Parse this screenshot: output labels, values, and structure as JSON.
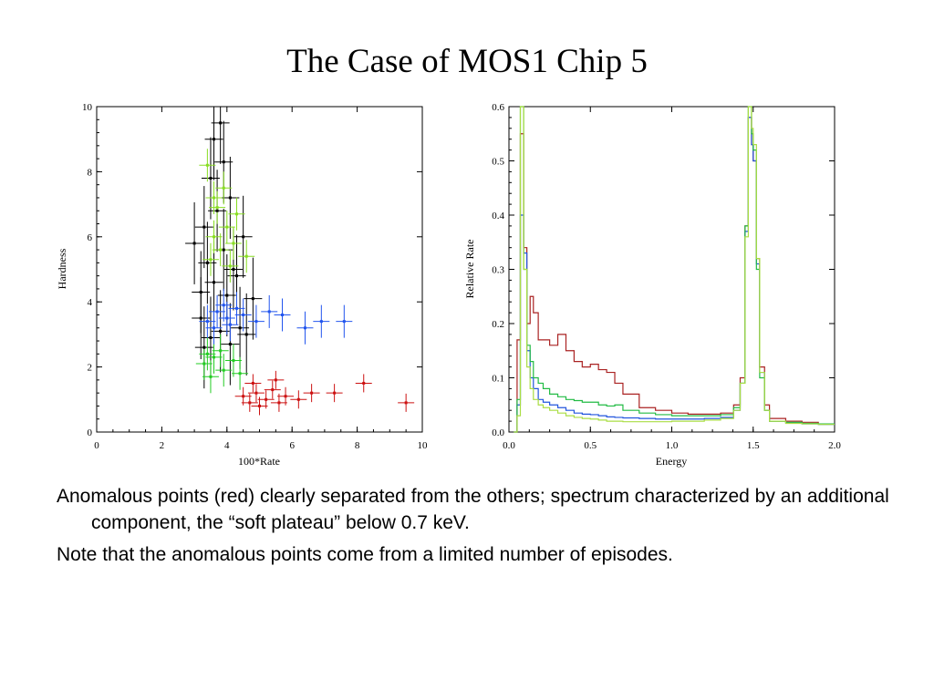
{
  "slide": {
    "title": "The Case of MOS1 Chip 5",
    "bullets": [
      "Anomalous points (red) clearly separated from the others; spectrum characterized by an additional component, the “soft plateau” below 0.7 keV.",
      "Note that the anomalous points come from a limited number of episodes."
    ]
  },
  "chart_data": [
    {
      "type": "scatter",
      "title": "",
      "xlabel": "100*Rate",
      "ylabel": "Hardness",
      "xlim": [
        0,
        10
      ],
      "ylim": [
        0,
        10
      ],
      "x_ticks": [
        "0",
        "2",
        "4",
        "6",
        "8",
        "10"
      ],
      "y_ticks": [
        "0",
        "2",
        "4",
        "6",
        "8",
        "10"
      ],
      "grid": false,
      "legend": "none",
      "series": [
        {
          "color": "#000000",
          "points": [
            {
              "x": 3.3,
              "y": 2.6
            },
            {
              "x": 3.5,
              "y": 2.9
            },
            {
              "x": 3.8,
              "y": 3.1
            },
            {
              "x": 4.1,
              "y": 2.7
            },
            {
              "x": 4.4,
              "y": 3.2
            },
            {
              "x": 3.2,
              "y": 4.3
            },
            {
              "x": 3.6,
              "y": 4.6
            },
            {
              "x": 4.0,
              "y": 4.2
            },
            {
              "x": 4.3,
              "y": 4.8
            },
            {
              "x": 3.4,
              "y": 5.2
            },
            {
              "x": 3.9,
              "y": 5.6
            },
            {
              "x": 4.2,
              "y": 5.0
            },
            {
              "x": 3.3,
              "y": 6.3
            },
            {
              "x": 3.7,
              "y": 6.8
            },
            {
              "x": 4.1,
              "y": 7.2
            },
            {
              "x": 3.5,
              "y": 7.8
            },
            {
              "x": 3.9,
              "y": 8.3
            },
            {
              "x": 3.6,
              "y": 9.0
            },
            {
              "x": 3.2,
              "y": 3.5
            },
            {
              "x": 4.6,
              "y": 3.0
            },
            {
              "x": 4.8,
              "y": 4.1
            },
            {
              "x": 3.0,
              "y": 5.8
            },
            {
              "x": 4.5,
              "y": 6.0
            },
            {
              "x": 3.8,
              "y": 9.5
            }
          ]
        },
        {
          "color": "#22cc22",
          "points": [
            {
              "x": 3.3,
              "y": 2.1
            },
            {
              "x": 3.6,
              "y": 2.3
            },
            {
              "x": 3.9,
              "y": 1.9
            },
            {
              "x": 4.2,
              "y": 2.2
            },
            {
              "x": 3.5,
              "y": 1.7
            },
            {
              "x": 3.8,
              "y": 2.5
            },
            {
              "x": 4.4,
              "y": 1.8
            },
            {
              "x": 3.4,
              "y": 2.4
            }
          ]
        },
        {
          "color": "#88dd22",
          "points": [
            {
              "x": 3.5,
              "y": 5.3
            },
            {
              "x": 3.8,
              "y": 5.6
            },
            {
              "x": 4.1,
              "y": 5.1
            },
            {
              "x": 3.6,
              "y": 6.0
            },
            {
              "x": 4.0,
              "y": 6.3
            },
            {
              "x": 3.7,
              "y": 6.9
            },
            {
              "x": 4.2,
              "y": 5.8
            },
            {
              "x": 3.9,
              "y": 7.5
            },
            {
              "x": 3.4,
              "y": 8.2
            },
            {
              "x": 4.3,
              "y": 6.7
            },
            {
              "x": 4.6,
              "y": 5.4
            },
            {
              "x": 3.6,
              "y": 7.2
            }
          ]
        },
        {
          "color": "#2255ee",
          "points": [
            {
              "x": 3.4,
              "y": 3.4
            },
            {
              "x": 3.7,
              "y": 3.7
            },
            {
              "x": 4.0,
              "y": 3.5
            },
            {
              "x": 4.3,
              "y": 3.8
            },
            {
              "x": 3.6,
              "y": 3.2
            },
            {
              "x": 4.1,
              "y": 3.3
            },
            {
              "x": 4.5,
              "y": 3.6
            },
            {
              "x": 4.9,
              "y": 3.4
            },
            {
              "x": 5.3,
              "y": 3.7
            },
            {
              "x": 5.7,
              "y": 3.6
            },
            {
              "x": 6.4,
              "y": 3.2
            },
            {
              "x": 6.9,
              "y": 3.4
            },
            {
              "x": 7.6,
              "y": 3.4
            },
            {
              "x": 3.9,
              "y": 3.9
            }
          ]
        },
        {
          "color": "#cc1111",
          "points": [
            {
              "x": 4.5,
              "y": 1.1
            },
            {
              "x": 4.7,
              "y": 0.9
            },
            {
              "x": 4.9,
              "y": 1.2
            },
            {
              "x": 5.0,
              "y": 0.8
            },
            {
              "x": 5.2,
              "y": 1.0
            },
            {
              "x": 5.4,
              "y": 1.3
            },
            {
              "x": 5.6,
              "y": 0.9
            },
            {
              "x": 5.8,
              "y": 1.1
            },
            {
              "x": 6.2,
              "y": 1.0
            },
            {
              "x": 6.6,
              "y": 1.2
            },
            {
              "x": 7.3,
              "y": 1.2
            },
            {
              "x": 8.2,
              "y": 1.5
            },
            {
              "x": 9.5,
              "y": 0.9
            },
            {
              "x": 4.8,
              "y": 1.5
            },
            {
              "x": 5.5,
              "y": 1.6
            }
          ]
        }
      ]
    },
    {
      "type": "line",
      "title": "",
      "xlabel": "Energy",
      "ylabel": "Relative Rate",
      "xlim": [
        0.0,
        2.0
      ],
      "ylim": [
        0.0,
        0.6
      ],
      "x_ticks": [
        "0.0",
        "0.5",
        "1.0",
        "1.5",
        "2.0"
      ],
      "y_ticks": [
        "0.0",
        "0.1",
        "0.2",
        "0.3",
        "0.4",
        "0.5",
        "0.6"
      ],
      "grid": false,
      "legend": "none",
      "x": [
        0.03,
        0.05,
        0.07,
        0.09,
        0.11,
        0.13,
        0.15,
        0.18,
        0.21,
        0.25,
        0.3,
        0.35,
        0.4,
        0.45,
        0.5,
        0.55,
        0.6,
        0.65,
        0.7,
        0.8,
        0.9,
        1.0,
        1.1,
        1.2,
        1.3,
        1.38,
        1.42,
        1.45,
        1.47,
        1.49,
        1.5,
        1.52,
        1.54,
        1.57,
        1.6,
        1.7,
        1.8,
        1.9,
        2.0
      ],
      "series": [
        {
          "color": "#aa2222",
          "values": [
            0.0,
            0.17,
            0.55,
            0.34,
            0.2,
            0.25,
            0.22,
            0.17,
            0.17,
            0.16,
            0.18,
            0.15,
            0.13,
            0.12,
            0.125,
            0.115,
            0.11,
            0.09,
            0.07,
            0.045,
            0.04,
            0.035,
            0.033,
            0.033,
            0.035,
            0.05,
            0.1,
            0.38,
            0.58,
            0.53,
            0.5,
            0.32,
            0.12,
            0.05,
            0.025,
            0.02,
            0.018,
            0.015,
            0.015
          ]
        },
        {
          "color": "#2255dd",
          "values": [
            0.0,
            0.05,
            0.4,
            0.33,
            0.15,
            0.1,
            0.08,
            0.06,
            0.055,
            0.05,
            0.045,
            0.04,
            0.035,
            0.033,
            0.032,
            0.03,
            0.028,
            0.027,
            0.026,
            0.025,
            0.024,
            0.024,
            0.024,
            0.025,
            0.027,
            0.04,
            0.09,
            0.37,
            0.58,
            0.53,
            0.5,
            0.31,
            0.11,
            0.04,
            0.02,
            0.017,
            0.015,
            0.014,
            0.014
          ]
        },
        {
          "color": "#22bb44",
          "values": [
            0.0,
            0.06,
            0.6,
            0.3,
            0.16,
            0.13,
            0.1,
            0.09,
            0.08,
            0.07,
            0.065,
            0.06,
            0.058,
            0.055,
            0.055,
            0.05,
            0.048,
            0.05,
            0.04,
            0.035,
            0.032,
            0.03,
            0.03,
            0.03,
            0.032,
            0.045,
            0.09,
            0.38,
            0.6,
            0.55,
            0.52,
            0.3,
            0.1,
            0.04,
            0.02,
            0.018,
            0.016,
            0.015,
            0.015
          ]
        },
        {
          "color": "#aadd44",
          "values": [
            0.0,
            0.03,
            0.6,
            0.3,
            0.12,
            0.08,
            0.06,
            0.05,
            0.045,
            0.04,
            0.035,
            0.03,
            0.027,
            0.025,
            0.024,
            0.022,
            0.02,
            0.02,
            0.019,
            0.019,
            0.019,
            0.02,
            0.02,
            0.022,
            0.025,
            0.04,
            0.09,
            0.36,
            0.6,
            0.56,
            0.53,
            0.32,
            0.11,
            0.04,
            0.02,
            0.016,
            0.015,
            0.014,
            0.014
          ]
        }
      ]
    }
  ]
}
